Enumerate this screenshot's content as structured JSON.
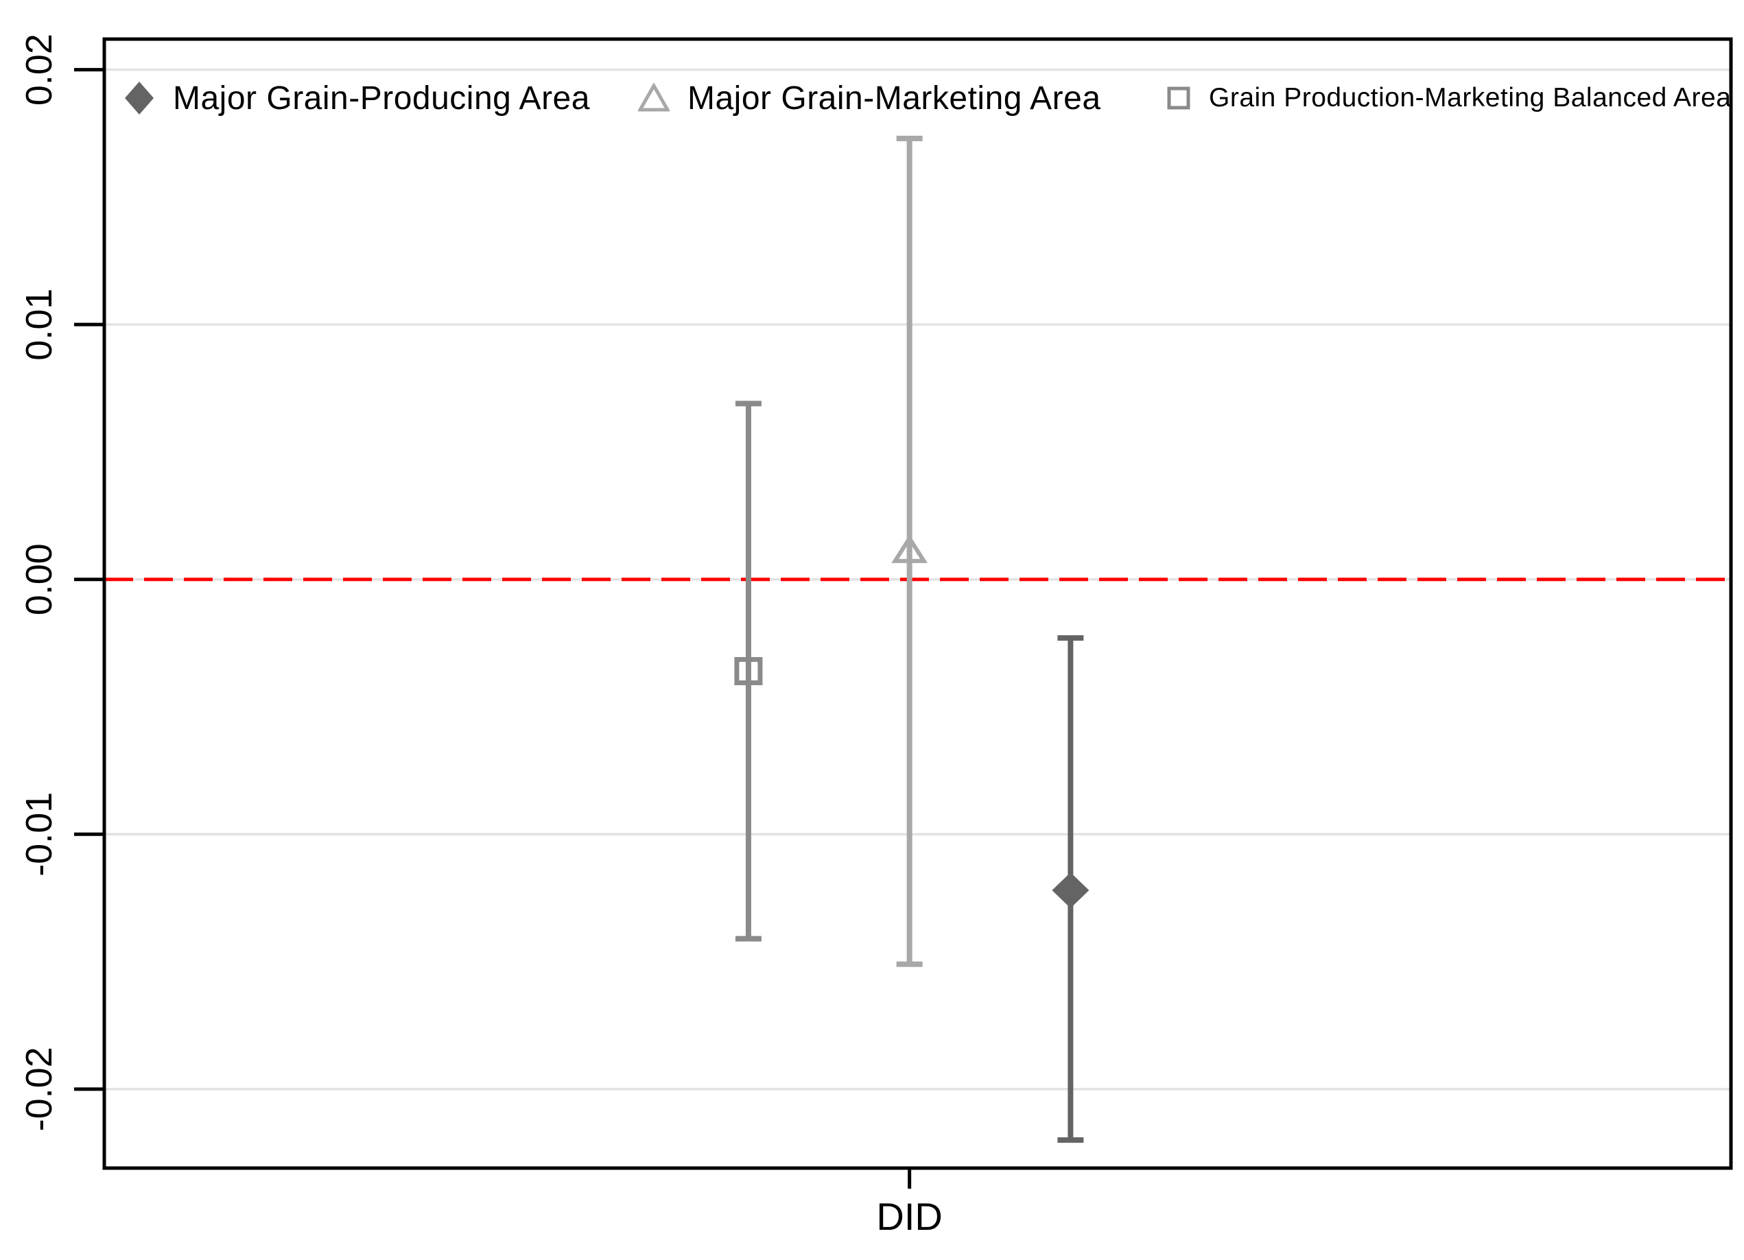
{
  "figure": {
    "background": "#ffffff",
    "border_color": "#000000",
    "grid_color": "#e2e2e2",
    "text_color": "#000000",
    "tick_color": "#000000"
  },
  "chart_data": {
    "type": "scatter",
    "subtype": "coefficient-plot-with-confidence-intervals",
    "title": "",
    "xlabel": "",
    "ylabel": "",
    "categories": [
      "DID"
    ],
    "x_tick_frac": 0.495,
    "yticks": [
      0.02,
      0.01,
      0.0,
      -0.01,
      -0.02
    ],
    "ytick_labels": [
      "0.02",
      "0.01",
      "0.00",
      "-0.01",
      "-0.02"
    ],
    "ylim": [
      -0.0231,
      0.0212
    ],
    "grid": "horizontal",
    "legend_position": "top-inside",
    "zero_line": {
      "value": 0.0,
      "style": "dashed",
      "color": "#ff0000"
    },
    "series": [
      {
        "name": "Major Grain-Producing Area",
        "marker": "filled-diamond",
        "color": "#646464",
        "estimate": -0.0122,
        "ci_low": -0.022,
        "ci_high": -0.0023,
        "x_frac": 0.594
      },
      {
        "name": "Major Grain-Marketing Area",
        "marker": "open-triangle",
        "color": "#a8a8a8",
        "estimate": 0.0011,
        "ci_low": -0.0151,
        "ci_high": 0.0173,
        "x_frac": 0.495
      },
      {
        "name": "Grain Production-Marketing Balanced Area",
        "marker": "open-square",
        "color": "#8a8a8a",
        "estimate": -0.0036,
        "ci_low": -0.0141,
        "ci_high": 0.0069,
        "x_frac": 0.396
      }
    ]
  }
}
